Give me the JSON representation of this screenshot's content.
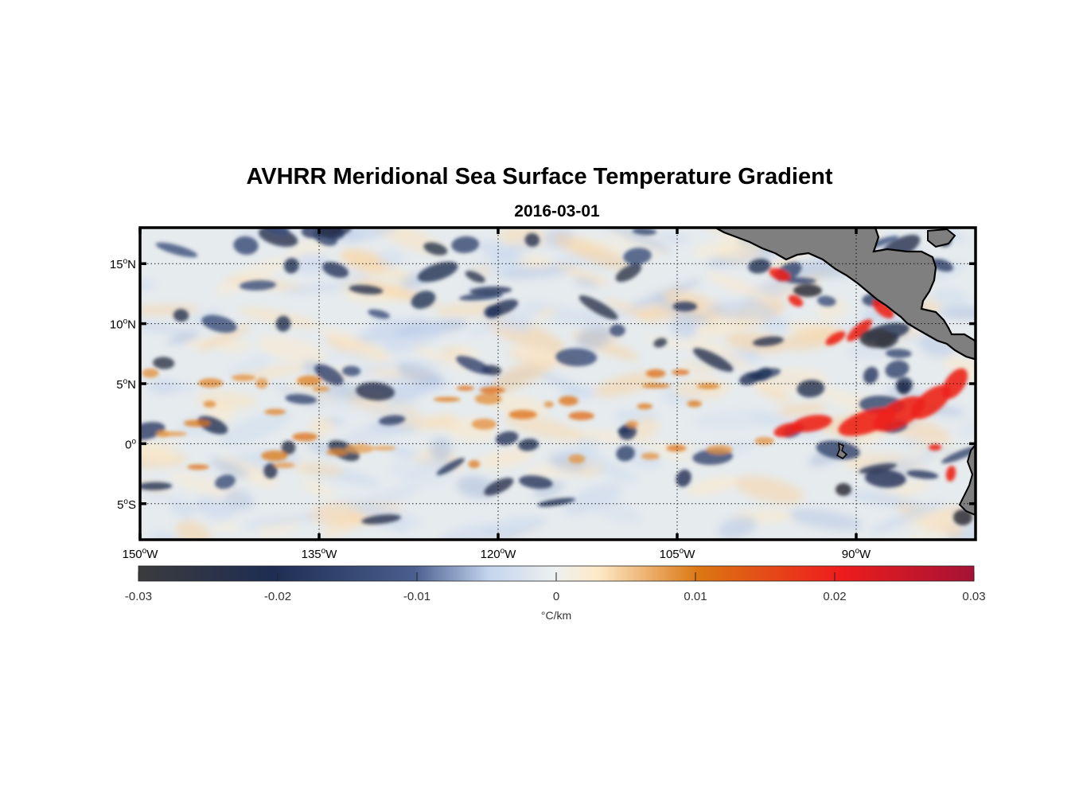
{
  "figure": {
    "title": "AVHRR Meridional Sea Surface Temperature Gradient",
    "subtitle": "2016-03-01"
  },
  "map": {
    "lon_range": [
      -150,
      -80
    ],
    "lat_range": [
      -8,
      18
    ],
    "lon_ticks": [
      {
        "value": -150,
        "num": "150",
        "hemi": "W"
      },
      {
        "value": -135,
        "num": "135",
        "hemi": "W"
      },
      {
        "value": -120,
        "num": "120",
        "hemi": "W"
      },
      {
        "value": -105,
        "num": "105",
        "hemi": "W"
      },
      {
        "value": -90,
        "num": "90",
        "hemi": "W"
      }
    ],
    "lat_ticks": [
      {
        "value": 15,
        "num": "15",
        "hemi": "N"
      },
      {
        "value": 10,
        "num": "10",
        "hemi": "N"
      },
      {
        "value": 5,
        "num": "5",
        "hemi": "N"
      },
      {
        "value": 0,
        "num": "0",
        "hemi": ""
      },
      {
        "value": -5,
        "num": "5",
        "hemi": "S"
      }
    ],
    "degree_symbol": "o",
    "grid": "dotted",
    "land_color": "#7f7f7f",
    "ocean_background": "#e6ebee"
  },
  "colorbar": {
    "range": [
      -0.03,
      0.03
    ],
    "ticks": [
      "-0.03",
      "-0.02",
      "-0.01",
      "0",
      "0.01",
      "0.02",
      "0.03"
    ],
    "label": "°C/km",
    "orientation": "horizontal",
    "stops": [
      {
        "v": 0.0,
        "c": "#3b3b3e"
      },
      {
        "v": 0.16,
        "c": "#1e2d52"
      },
      {
        "v": 0.33,
        "c": "#4a5f8f"
      },
      {
        "v": 0.42,
        "c": "#c4d5ee"
      },
      {
        "v": 0.5,
        "c": "#eef1f0"
      },
      {
        "v": 0.55,
        "c": "#fde9c7"
      },
      {
        "v": 0.67,
        "c": "#dc7713"
      },
      {
        "v": 0.84,
        "c": "#ee1c1c"
      },
      {
        "v": 1.0,
        "c": "#a51236"
      }
    ]
  }
}
